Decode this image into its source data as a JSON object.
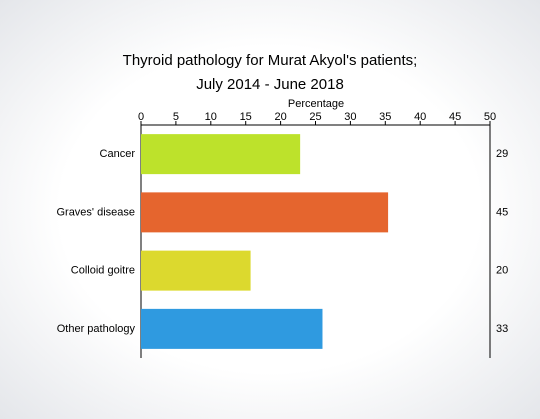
{
  "chart_data": {
    "type": "bar",
    "orientation": "horizontal",
    "title": "Thyroid pathology for Murat Akyol's patients;",
    "subtitle": "July 2014 - June 2018",
    "x_label": "Percentage",
    "categories": [
      "Cancer",
      "Graves' disease",
      "Colloid goitre",
      "Other pathology"
    ],
    "values": [
      22.8,
      35.4,
      15.7,
      26.0
    ],
    "colors": [
      "#bde22b",
      "#e5652e",
      "#dcd92e",
      "#2f9ae0"
    ],
    "counts": [
      29,
      45,
      20,
      33
    ],
    "xlim": [
      0,
      50
    ],
    "xticks": [
      0,
      5,
      10,
      15,
      20,
      25,
      30,
      35,
      40,
      45,
      50
    ],
    "grid": false
  }
}
